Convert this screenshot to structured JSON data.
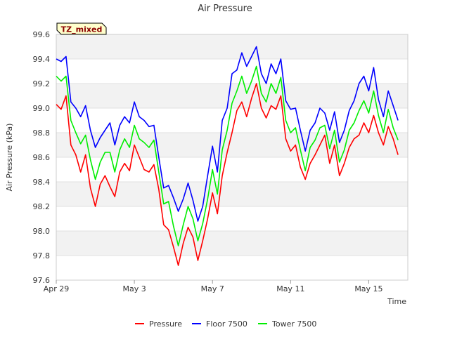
{
  "chart_data": {
    "type": "line",
    "title": "Air Pressure",
    "xlabel": "Time",
    "ylabel": "Air Pressure (kPa)",
    "tag": "TZ_mixed",
    "xlim": [
      "2024-04-29",
      "2024-05-17"
    ],
    "ylim": [
      97.6,
      99.6
    ],
    "x_ticks": [
      {
        "date": "2024-04-29",
        "label": "Apr 29"
      },
      {
        "date": "2024-05-03",
        "label": "May 3"
      },
      {
        "date": "2024-05-07",
        "label": "May 7"
      },
      {
        "date": "2024-05-11",
        "label": "May 11"
      },
      {
        "date": "2024-05-15",
        "label": "May 15"
      }
    ],
    "y_ticks": [
      "97.6",
      "97.8",
      "98.0",
      "98.2",
      "98.4",
      "98.6",
      "98.8",
      "99.0",
      "99.2",
      "99.4",
      "99.6"
    ],
    "grid": true,
    "banded_background": true,
    "legend_position": "bottom",
    "x": [
      "2024-04-29T00:00",
      "2024-04-29T06:00",
      "2024-04-29T12:00",
      "2024-04-29T18:00",
      "2024-04-30T00:00",
      "2024-04-30T06:00",
      "2024-04-30T12:00",
      "2024-04-30T18:00",
      "2024-05-01T00:00",
      "2024-05-01T06:00",
      "2024-05-01T12:00",
      "2024-05-01T18:00",
      "2024-05-02T00:00",
      "2024-05-02T06:00",
      "2024-05-02T12:00",
      "2024-05-02T18:00",
      "2024-05-03T00:00",
      "2024-05-03T06:00",
      "2024-05-03T12:00",
      "2024-05-03T18:00",
      "2024-05-04T00:00",
      "2024-05-04T06:00",
      "2024-05-04T12:00",
      "2024-05-04T18:00",
      "2024-05-05T00:00",
      "2024-05-05T06:00",
      "2024-05-05T12:00",
      "2024-05-05T18:00",
      "2024-05-06T00:00",
      "2024-05-06T06:00",
      "2024-05-06T12:00",
      "2024-05-06T18:00",
      "2024-05-07T00:00",
      "2024-05-07T06:00",
      "2024-05-07T12:00",
      "2024-05-07T18:00",
      "2024-05-08T00:00",
      "2024-05-08T06:00",
      "2024-05-08T12:00",
      "2024-05-08T18:00",
      "2024-05-09T00:00",
      "2024-05-09T06:00",
      "2024-05-09T12:00",
      "2024-05-09T18:00",
      "2024-05-10T00:00",
      "2024-05-10T06:00",
      "2024-05-10T12:00",
      "2024-05-10T18:00",
      "2024-05-11T00:00",
      "2024-05-11T06:00",
      "2024-05-11T12:00",
      "2024-05-11T18:00",
      "2024-05-12T00:00",
      "2024-05-12T06:00",
      "2024-05-12T12:00",
      "2024-05-12T18:00",
      "2024-05-13T00:00",
      "2024-05-13T06:00",
      "2024-05-13T12:00",
      "2024-05-13T18:00",
      "2024-05-14T00:00",
      "2024-05-14T06:00",
      "2024-05-14T12:00",
      "2024-05-14T18:00",
      "2024-05-15T00:00",
      "2024-05-15T06:00",
      "2024-05-15T12:00",
      "2024-05-15T18:00",
      "2024-05-16T00:00",
      "2024-05-16T06:00",
      "2024-05-16T12:00"
    ],
    "series": [
      {
        "name": "Pressure",
        "color": "#ff0000",
        "values": [
          99.03,
          98.99,
          99.1,
          98.7,
          98.62,
          98.48,
          98.62,
          98.35,
          98.2,
          98.38,
          98.45,
          98.36,
          98.28,
          98.48,
          98.55,
          98.49,
          98.7,
          98.6,
          98.5,
          98.48,
          98.54,
          98.34,
          98.05,
          98.01,
          97.87,
          97.72,
          97.9,
          98.03,
          97.95,
          97.76,
          97.92,
          98.1,
          98.31,
          98.14,
          98.45,
          98.64,
          98.8,
          98.98,
          99.05,
          98.93,
          99.08,
          99.2,
          99.0,
          98.92,
          99.02,
          98.99,
          99.1,
          98.75,
          98.65,
          98.7,
          98.52,
          98.42,
          98.55,
          98.62,
          98.7,
          98.78,
          98.55,
          98.7,
          98.45,
          98.55,
          98.68,
          98.75,
          98.78,
          98.88,
          98.8,
          98.94,
          98.8,
          98.7,
          98.85,
          98.75,
          98.62
        ]
      },
      {
        "name": "Floor 7500",
        "color": "#0000ff",
        "values": [
          99.4,
          99.38,
          99.42,
          99.05,
          99.0,
          98.93,
          99.02,
          98.82,
          98.68,
          98.76,
          98.82,
          98.88,
          98.7,
          98.86,
          98.93,
          98.88,
          99.05,
          98.93,
          98.9,
          98.85,
          98.86,
          98.6,
          98.35,
          98.37,
          98.27,
          98.16,
          98.26,
          98.39,
          98.25,
          98.08,
          98.2,
          98.45,
          98.69,
          98.48,
          98.9,
          99.0,
          99.28,
          99.31,
          99.45,
          99.34,
          99.42,
          99.5,
          99.28,
          99.2,
          99.36,
          99.28,
          99.4,
          99.06,
          98.99,
          99.0,
          98.82,
          98.65,
          98.82,
          98.88,
          99.0,
          98.96,
          98.82,
          98.97,
          98.72,
          98.82,
          98.98,
          99.06,
          99.2,
          99.26,
          99.14,
          99.33,
          99.07,
          98.93,
          99.14,
          99.02,
          98.9
        ]
      },
      {
        "name": "Tower 7500",
        "color": "#00ee00",
        "values": [
          99.26,
          99.22,
          99.26,
          98.9,
          98.8,
          98.71,
          98.78,
          98.58,
          98.42,
          98.56,
          98.64,
          98.64,
          98.48,
          98.66,
          98.75,
          98.68,
          98.86,
          98.75,
          98.72,
          98.68,
          98.74,
          98.48,
          98.22,
          98.24,
          98.04,
          97.88,
          98.05,
          98.2,
          98.1,
          97.92,
          98.06,
          98.26,
          98.5,
          98.3,
          98.66,
          98.82,
          99.04,
          99.14,
          99.26,
          99.12,
          99.22,
          99.34,
          99.12,
          99.05,
          99.2,
          99.12,
          99.25,
          98.9,
          98.8,
          98.84,
          98.66,
          98.49,
          98.68,
          98.74,
          98.84,
          98.86,
          98.67,
          98.82,
          98.56,
          98.66,
          98.82,
          98.88,
          98.98,
          99.06,
          98.96,
          99.14,
          98.94,
          98.8,
          98.99,
          98.84,
          98.74
        ]
      }
    ]
  }
}
